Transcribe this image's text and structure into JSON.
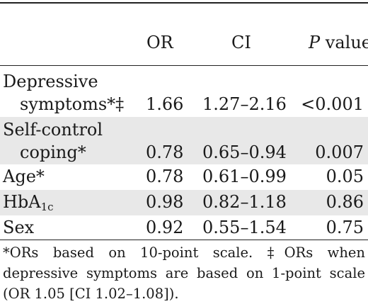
{
  "header": {
    "col_or": "OR",
    "col_ci": "CI",
    "col_p_italic": "P",
    "col_p_rest": " value"
  },
  "rows": [
    {
      "label_line1": "Depressive",
      "label_line2": "symptoms*‡",
      "or": "1.66",
      "ci": "1.27–2.16",
      "p": "<0.001"
    },
    {
      "label_line1": "Self-control",
      "label_line2": "coping*",
      "or": "0.78",
      "ci": "0.65–0.94",
      "p": "0.007"
    },
    {
      "label": "Age*",
      "or": "0.78",
      "ci": "0.61–0.99",
      "p": "0.05"
    },
    {
      "label_main": "HbA",
      "label_sub": "1c",
      "or": "0.98",
      "ci": "0.82–1.18",
      "p": "0.86"
    },
    {
      "label": "Sex",
      "or": "0.92",
      "ci": "0.55–1.54",
      "p": "0.75"
    }
  ],
  "footnote": "*ORs based on 10-point scale. ‡ORs when depressive symptoms are based on 1-point scale (OR 1.05 [CI 1.02–1.08])."
}
